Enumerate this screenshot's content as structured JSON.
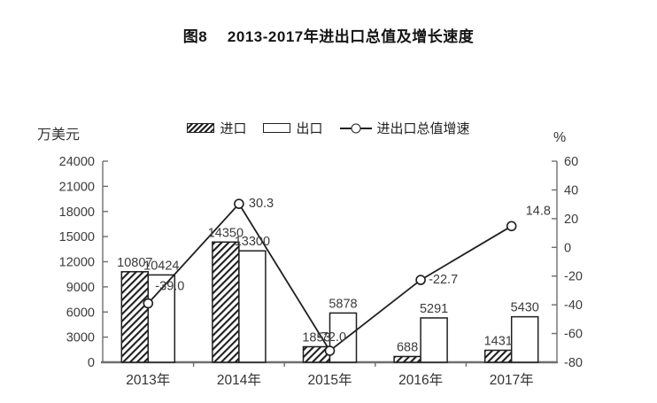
{
  "title": {
    "text": "图8　 2013-2017年进出口总值及增长速度"
  },
  "legend": {
    "items": [
      {
        "label": "进口",
        "swatch": "hatched-bar"
      },
      {
        "label": "出口",
        "swatch": "open-bar"
      },
      {
        "label": "进出口总值增速",
        "swatch": "line-with-circle-marker"
      }
    ]
  },
  "axes": {
    "left": {
      "unit": "万美元"
    },
    "right": {
      "unit": "%"
    }
  },
  "chart_data": {
    "type": "bar+line",
    "title": "图8 2013-2017年进出口总值及增长速度",
    "categories": [
      "2013年",
      "2014年",
      "2015年",
      "2016年",
      "2017年"
    ],
    "series": [
      {
        "name": "进口",
        "type": "bar",
        "style": "hatched",
        "axis": "left",
        "values": [
          10807,
          14350,
          1853,
          688,
          1431
        ]
      },
      {
        "name": "出口",
        "type": "bar",
        "style": "open",
        "axis": "left",
        "values": [
          10424,
          13300,
          5878,
          5291,
          5430
        ]
      },
      {
        "name": "进出口总值增速",
        "type": "line",
        "marker": "open-circle",
        "axis": "right",
        "values": [
          -39.0,
          30.3,
          -72.0,
          -22.7,
          14.8
        ],
        "labels": [
          "-39.0",
          "30.3",
          "-72.0",
          "-22.7",
          "14.8"
        ]
      }
    ],
    "left_axis": {
      "label": "万美元",
      "min": 0,
      "max": 24000,
      "step": 3000
    },
    "right_axis": {
      "label": "%",
      "min": -80,
      "max": 60,
      "step": 20
    },
    "grid": false,
    "legend_position": "top"
  },
  "colors": {
    "ink": "#1f1f1f",
    "axis": "#6e6e6e",
    "text": "#3c3c3c"
  }
}
